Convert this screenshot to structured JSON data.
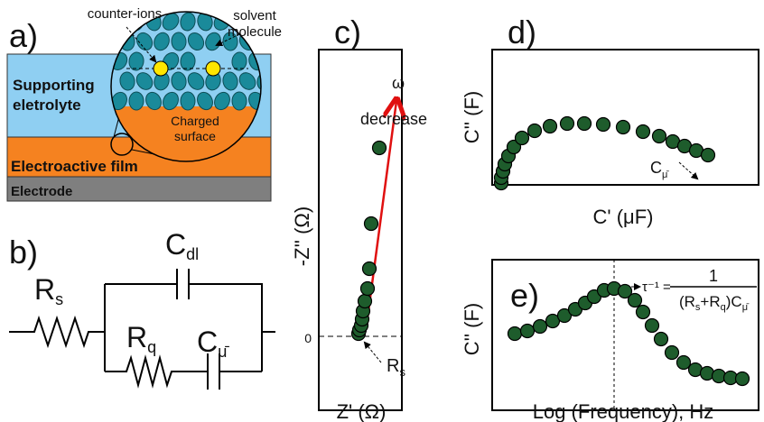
{
  "panel_a": {
    "label": "a)",
    "counter_ions": "counter-ions",
    "solvent": [
      "solvent",
      "molecule"
    ],
    "electrolyte": [
      "Supporting",
      "eletrolyte"
    ],
    "surface": [
      "Charged",
      "surface"
    ],
    "film": "Electroactive film",
    "electrode": "Electrode"
  },
  "panel_b": {
    "label": "b)",
    "c_dl": {
      "main": "C",
      "sub": "dl"
    },
    "r_s": {
      "main": "R",
      "sub": "s"
    },
    "r_q": {
      "main": "R",
      "sub": "q"
    },
    "c_mu": {
      "main": "C",
      "sub": "μ̄"
    }
  },
  "panel_c": {
    "label": "c)",
    "omega": "ω",
    "decrease": "decrease",
    "y_label": "-Z'' (Ω)",
    "zero": "0",
    "r_s": {
      "main": "R",
      "sub": "s"
    },
    "x_label": "Z' (Ω)"
  },
  "panel_d": {
    "label": "d)",
    "y_label": "C'' (F)",
    "c_mu": {
      "main": "C",
      "sub": "μ̄"
    },
    "x_label": "C' (μF)"
  },
  "panel_e": {
    "label": "e)",
    "y_label": "C'' (F)",
    "tau": "τ⁻¹ =",
    "numerator": "1",
    "denominator": {
      "open": "(R",
      "s": "s",
      "plus": "+R",
      "q": "q",
      "close": ")C",
      "mu": "μ̄"
    },
    "x_label": "Log (Frequency), Hz"
  }
}
